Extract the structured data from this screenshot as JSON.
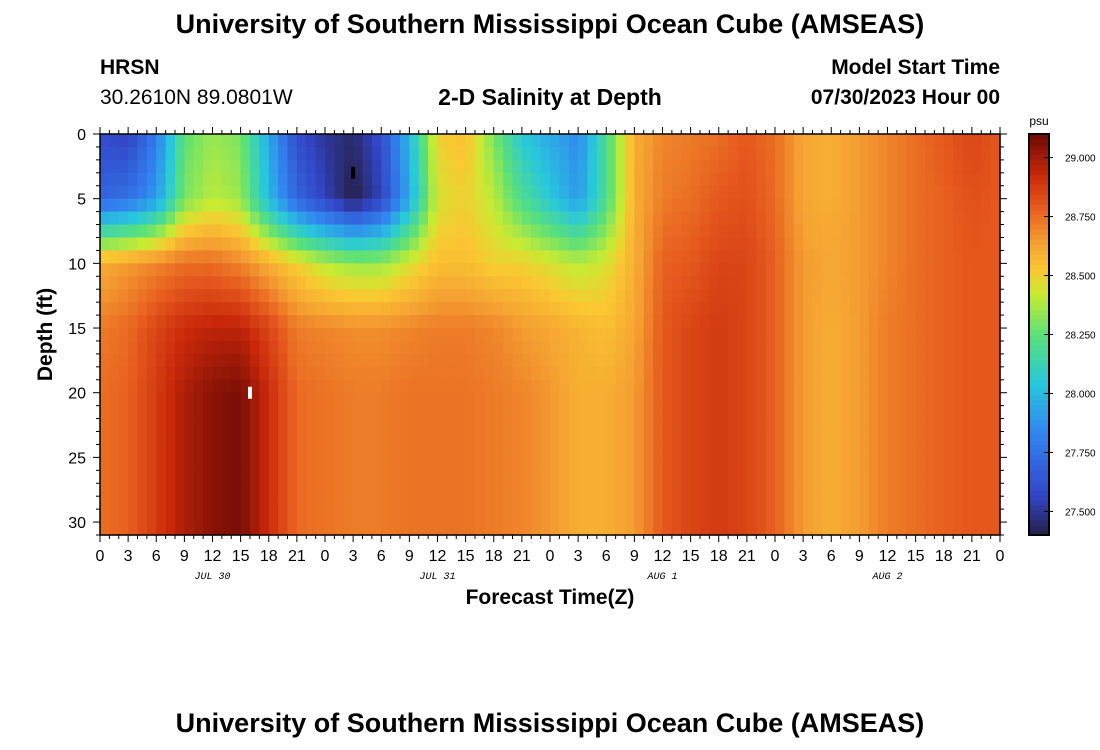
{
  "header": {
    "title": "University of Southern Mississippi Ocean Cube (AMSEAS)",
    "station": "HRSN",
    "coords": "30.2610N  89.0801W",
    "plot_title": "2-D Salinity at Depth",
    "model_label": "Model Start Time",
    "model_time": "07/30/2023 Hour 00",
    "footer_title": "University of Southern Mississippi Ocean Cube (AMSEAS)"
  },
  "chart_data": {
    "type": "heatmap",
    "title": "2-D Salinity at Depth",
    "xlabel": "Forecast Time(Z)",
    "ylabel": "Depth (ft)",
    "x_unit": "hours",
    "x_range": [
      0,
      96
    ],
    "x_tick_labels": [
      "0",
      "3",
      "6",
      "9",
      "12",
      "15",
      "18",
      "21",
      "0",
      "3",
      "6",
      "9",
      "12",
      "15",
      "18",
      "21",
      "0",
      "3",
      "6",
      "9",
      "12",
      "15",
      "18",
      "21",
      "0",
      "3",
      "6",
      "9",
      "12",
      "15",
      "18",
      "21",
      "0"
    ],
    "date_labels": [
      "JUL 30",
      "JUL 31",
      "AUG 1",
      "AUG 2"
    ],
    "y_range": [
      0,
      31
    ],
    "y_ticks": [
      0,
      5,
      10,
      15,
      20,
      25,
      30
    ],
    "colorbar": {
      "unit": "psu",
      "range": [
        27.4,
        29.1
      ],
      "ticks": [
        27.5,
        27.75,
        28.0,
        28.25,
        28.5,
        28.75,
        29.0
      ],
      "tick_labels": [
        "27.500",
        "27.750",
        "28.000",
        "28.250",
        "28.500",
        "28.750",
        "29.000"
      ]
    },
    "markers": [
      {
        "label": "minimum",
        "hour": 27,
        "depth": 3,
        "color": "#000000"
      },
      {
        "label": "maximum",
        "hour": 16,
        "depth": 20,
        "color": "#ffffff"
      }
    ],
    "times_h": [
      0,
      3,
      6,
      9,
      12,
      15,
      18,
      21,
      24,
      27,
      30,
      33,
      36,
      39,
      42,
      45,
      48,
      51,
      54,
      57,
      60,
      63,
      66,
      69,
      72,
      75,
      78,
      81,
      84,
      87,
      90,
      93,
      96
    ],
    "depths_ft": [
      0,
      5,
      10,
      15,
      20,
      25,
      31
    ],
    "salinity_psu": [
      [
        27.6,
        27.55,
        27.8,
        28.25,
        28.35,
        28.3,
        27.95,
        27.6,
        27.5,
        27.45,
        27.6,
        28.0,
        28.5,
        28.55,
        28.3,
        28.05,
        27.95,
        27.85,
        28.2,
        28.6,
        28.7,
        28.72,
        28.75,
        28.8,
        28.75,
        28.62,
        28.6,
        28.65,
        28.7,
        28.75,
        28.8,
        28.85,
        28.8
      ],
      [
        27.7,
        27.75,
        27.9,
        28.3,
        28.4,
        28.35,
        28.0,
        27.7,
        27.55,
        27.4,
        27.55,
        27.95,
        28.45,
        28.5,
        28.4,
        28.2,
        28.05,
        27.9,
        28.2,
        28.6,
        28.72,
        28.75,
        28.8,
        28.82,
        28.76,
        28.62,
        28.6,
        28.65,
        28.7,
        28.75,
        28.78,
        28.82,
        28.8
      ],
      [
        28.6,
        28.65,
        28.7,
        28.75,
        28.75,
        28.7,
        28.6,
        28.5,
        28.4,
        28.35,
        28.35,
        28.45,
        28.55,
        28.55,
        28.5,
        28.5,
        28.45,
        28.4,
        28.45,
        28.6,
        28.78,
        28.8,
        28.85,
        28.85,
        28.78,
        28.65,
        28.62,
        28.65,
        28.7,
        28.75,
        28.78,
        28.8,
        28.8
      ],
      [
        28.72,
        28.76,
        28.85,
        28.92,
        28.95,
        28.95,
        28.85,
        28.72,
        28.7,
        28.68,
        28.68,
        28.7,
        28.72,
        28.72,
        28.7,
        28.65,
        28.62,
        28.58,
        28.55,
        28.62,
        28.8,
        28.85,
        28.88,
        28.85,
        28.78,
        28.65,
        28.6,
        28.65,
        28.72,
        28.75,
        28.78,
        28.8,
        28.8
      ],
      [
        28.75,
        28.78,
        28.88,
        28.98,
        29.05,
        29.08,
        28.92,
        28.76,
        28.74,
        28.72,
        28.72,
        28.74,
        28.74,
        28.74,
        28.72,
        28.7,
        28.66,
        28.6,
        28.6,
        28.65,
        28.8,
        28.85,
        28.88,
        28.85,
        28.78,
        28.65,
        28.6,
        28.65,
        28.72,
        28.75,
        28.78,
        28.8,
        28.8
      ],
      [
        28.75,
        28.78,
        28.88,
        28.98,
        29.05,
        29.08,
        28.92,
        28.76,
        28.74,
        28.72,
        28.72,
        28.74,
        28.74,
        28.74,
        28.72,
        28.7,
        28.66,
        28.6,
        28.6,
        28.65,
        28.8,
        28.85,
        28.88,
        28.85,
        28.78,
        28.65,
        28.6,
        28.65,
        28.72,
        28.75,
        28.78,
        28.8,
        28.8
      ],
      [
        28.75,
        28.78,
        28.88,
        28.98,
        29.05,
        29.08,
        28.92,
        28.76,
        28.74,
        28.72,
        28.72,
        28.74,
        28.74,
        28.74,
        28.72,
        28.7,
        28.66,
        28.6,
        28.6,
        28.65,
        28.8,
        28.85,
        28.88,
        28.85,
        28.78,
        28.65,
        28.6,
        28.65,
        28.72,
        28.75,
        28.78,
        28.8,
        28.8
      ]
    ]
  }
}
